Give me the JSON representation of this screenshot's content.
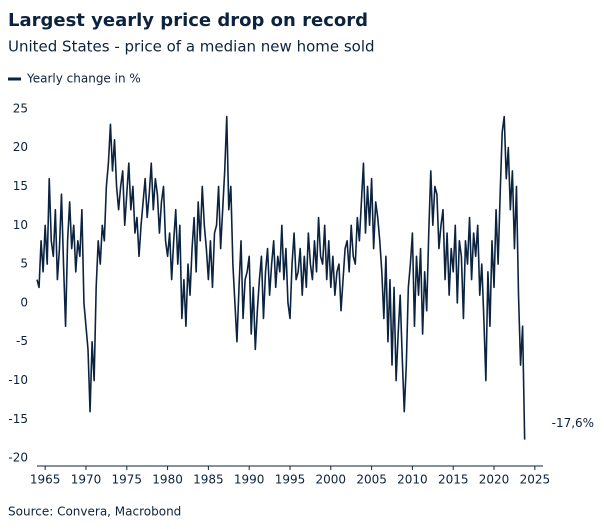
{
  "chart_data": {
    "type": "line",
    "title": "Largest yearly price drop on record",
    "subtitle": "United States - price of a median new home sold",
    "source": "Source: Convera, Macrobond",
    "annotation": "-17,6%",
    "x": [
      1964,
      1964.25,
      1964.5,
      1964.75,
      1965,
      1965.25,
      1965.5,
      1965.75,
      1966,
      1966.25,
      1966.5,
      1966.75,
      1967,
      1967.25,
      1967.5,
      1967.75,
      1968,
      1968.25,
      1968.5,
      1968.75,
      1969,
      1969.25,
      1969.5,
      1969.75,
      1970,
      1970.25,
      1970.5,
      1970.75,
      1971,
      1971.25,
      1971.5,
      1971.75,
      1972,
      1972.25,
      1972.5,
      1972.75,
      1973,
      1973.25,
      1973.5,
      1973.75,
      1974,
      1974.25,
      1974.5,
      1974.75,
      1975,
      1975.25,
      1975.5,
      1975.75,
      1976,
      1976.25,
      1976.5,
      1976.75,
      1977,
      1977.25,
      1977.5,
      1977.75,
      1978,
      1978.25,
      1978.5,
      1978.75,
      1979,
      1979.25,
      1979.5,
      1979.75,
      1980,
      1980.25,
      1980.5,
      1980.75,
      1981,
      1981.25,
      1981.5,
      1981.75,
      1982,
      1982.25,
      1982.5,
      1982.75,
      1983,
      1983.25,
      1983.5,
      1983.75,
      1984,
      1984.25,
      1984.5,
      1984.75,
      1985,
      1985.25,
      1985.5,
      1985.75,
      1986,
      1986.25,
      1986.5,
      1986.75,
      1987,
      1987.25,
      1987.5,
      1987.75,
      1988,
      1988.25,
      1988.5,
      1988.75,
      1989,
      1989.25,
      1989.5,
      1989.75,
      1990,
      1990.25,
      1990.5,
      1990.75,
      1991,
      1991.25,
      1991.5,
      1991.75,
      1992,
      1992.25,
      1992.5,
      1992.75,
      1993,
      1993.25,
      1993.5,
      1993.75,
      1994,
      1994.25,
      1994.5,
      1994.75,
      1995,
      1995.25,
      1995.5,
      1995.75,
      1996,
      1996.25,
      1996.5,
      1996.75,
      1997,
      1997.25,
      1997.5,
      1997.75,
      1998,
      1998.25,
      1998.5,
      1998.75,
      1999,
      1999.25,
      1999.5,
      1999.75,
      2000,
      2000.25,
      2000.5,
      2000.75,
      2001,
      2001.25,
      2001.5,
      2001.75,
      2002,
      2002.25,
      2002.5,
      2002.75,
      2003,
      2003.25,
      2003.5,
      2003.75,
      2004,
      2004.25,
      2004.5,
      2004.75,
      2005,
      2005.25,
      2005.5,
      2005.75,
      2006,
      2006.25,
      2006.5,
      2006.75,
      2007,
      2007.25,
      2007.5,
      2007.75,
      2008,
      2008.25,
      2008.5,
      2008.75,
      2009,
      2009.25,
      2009.5,
      2009.75,
      2010,
      2010.25,
      2010.5,
      2010.75,
      2011,
      2011.25,
      2011.5,
      2011.75,
      2012,
      2012.25,
      2012.5,
      2012.75,
      2013,
      2013.25,
      2013.5,
      2013.75,
      2014,
      2014.25,
      2014.5,
      2014.75,
      2015,
      2015.25,
      2015.5,
      2015.75,
      2016,
      2016.25,
      2016.5,
      2016.75,
      2017,
      2017.25,
      2017.5,
      2017.75,
      2018,
      2018.25,
      2018.5,
      2018.75,
      2019,
      2019.25,
      2019.5,
      2019.75,
      2020,
      2020.25,
      2020.5,
      2020.75,
      2021,
      2021.25,
      2021.5,
      2021.75,
      2022,
      2022.25,
      2022.5,
      2022.75,
      2023,
      2023.25,
      2023.5,
      2023.75
    ],
    "series": [
      {
        "name": "Yearly change in %",
        "color": "#0c2340",
        "values": [
          3,
          2,
          8,
          4,
          10,
          5,
          16,
          8,
          6,
          12,
          3,
          7,
          14,
          5,
          -3,
          8,
          13,
          7,
          10,
          4,
          8,
          6,
          12,
          0,
          -3,
          -6,
          -14,
          -5,
          -10,
          2,
          8,
          5,
          10,
          8,
          15,
          18,
          23,
          17,
          21,
          15,
          12,
          15,
          17,
          10,
          14,
          18,
          12,
          15,
          9,
          11,
          6,
          10,
          13,
          16,
          11,
          14,
          18,
          12,
          16,
          14,
          9,
          13,
          15,
          8,
          6,
          9,
          3,
          8,
          12,
          5,
          10,
          -2,
          3,
          -3,
          5,
          1,
          7,
          11,
          4,
          13,
          8,
          15,
          10,
          7,
          3,
          8,
          2,
          9,
          10,
          15,
          7,
          12,
          17,
          24,
          12,
          15,
          5,
          0,
          -5,
          2,
          8,
          -2,
          3,
          4,
          6,
          -4,
          2,
          -6,
          -1,
          3,
          6,
          -2,
          4,
          7,
          1,
          5,
          8,
          2,
          6,
          4,
          10,
          3,
          7,
          0,
          -2,
          5,
          9,
          3,
          4,
          7,
          1,
          6,
          2,
          9,
          5,
          3,
          8,
          4,
          11,
          6,
          5,
          10,
          3,
          8,
          2,
          6,
          1,
          4,
          5,
          -1,
          3,
          7,
          8,
          4,
          10,
          6,
          5,
          11,
          8,
          13,
          18,
          9,
          15,
          10,
          16,
          7,
          13,
          11,
          8,
          4,
          -2,
          6,
          -5,
          3,
          -8,
          2,
          -10,
          -4,
          1,
          -7,
          -14,
          -8,
          2,
          5,
          9,
          -3,
          6,
          1,
          7,
          -4,
          4,
          -1,
          9,
          17,
          10,
          15,
          14,
          7,
          10,
          12,
          3,
          9,
          1,
          7,
          4,
          10,
          0,
          8,
          6,
          -2,
          8,
          5,
          11,
          3,
          9,
          6,
          10,
          1,
          5,
          -2,
          -10,
          4,
          -3,
          8,
          2,
          12,
          5,
          14,
          22,
          24,
          16,
          20,
          12,
          17,
          7,
          15,
          1,
          -8,
          -3,
          -17.6
        ]
      }
    ],
    "xlim": [
      1964,
      2026
    ],
    "xticks": [
      1965,
      1970,
      1975,
      1980,
      1985,
      1990,
      1995,
      2000,
      2005,
      2010,
      2015,
      2020,
      2025
    ],
    "ylim": [
      -21,
      26
    ],
    "yticks": [
      25,
      20,
      15,
      10,
      5,
      0,
      -5,
      -10,
      -15,
      -20
    ],
    "grid": false
  }
}
